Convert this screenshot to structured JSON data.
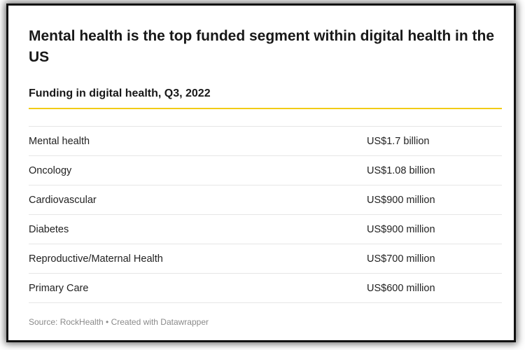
{
  "header": {
    "title": "Mental health is the top funded segment within digital health in the US",
    "subtitle": "Funding in digital health, Q3, 2022"
  },
  "table": {
    "rows": [
      [
        "Mental health",
        "US$1.7 billion"
      ],
      [
        "Oncology",
        "US$1.08 billion"
      ],
      [
        "Cardiovascular",
        "US$900 million"
      ],
      [
        "Diabetes",
        "US$900 million"
      ],
      [
        "Reproductive/Maternal Health",
        "US$700 million"
      ],
      [
        "Primary Care",
        "US$600 million"
      ]
    ]
  },
  "footer": {
    "source": "Source: RockHealth • Created with Datawrapper"
  }
}
